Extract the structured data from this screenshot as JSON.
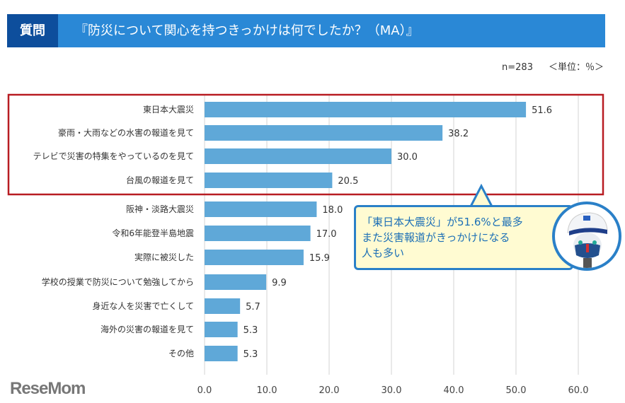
{
  "header": {
    "label": "質問",
    "question": "『防災について関心を持つきっかけは何でしたか？（MA）』"
  },
  "meta": {
    "n": "n=283",
    "unit": "＜単位：％＞"
  },
  "callout": {
    "lines": [
      "「東日本大震災」が51.6%と最多",
      "また災害報道がきっかけになる",
      "人も多い"
    ]
  },
  "logo": "ReseMom",
  "chart_data": {
    "type": "bar",
    "orientation": "horizontal",
    "categories": [
      "東日本大震災",
      "豪雨・大雨などの水害の報道を見て",
      "テレビで災害の特集をやっているのを見て",
      "台風の報道を見て",
      "阪神・淡路大震災",
      "令和6年能登半島地震",
      "実際に被災した",
      "学校の授業で防災について勉強してから",
      "身近な人を災害で亡くして",
      "海外の災害の報道を見て",
      "その他"
    ],
    "values": [
      51.6,
      38.2,
      30.0,
      20.5,
      18.0,
      17.0,
      15.9,
      9.9,
      5.7,
      5.3,
      5.3
    ],
    "xlim": [
      0,
      60
    ],
    "ticks": [
      "0.0",
      "10.0",
      "20.0",
      "30.0",
      "40.0",
      "50.0",
      "60.0"
    ],
    "highlighted_top": 4,
    "bar_color": "#5fa8d8",
    "highlight_color": "#b81c22"
  }
}
